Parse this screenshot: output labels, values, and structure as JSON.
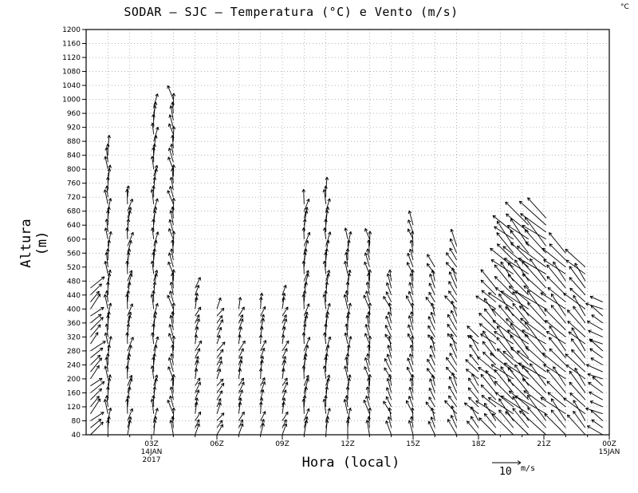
{
  "chart_data": {
    "type": "wind-barb-profile",
    "title": "SODAR – SJC – Temperatura (°C) e Vento (m/s)",
    "unit_corner": "°C",
    "ylabel": "Altura (m)",
    "xlabel": "Hora (local)",
    "scale_value": "10",
    "scale_unit": "m/s",
    "ylim": [
      40,
      1200
    ],
    "y_ticks": [
      40,
      80,
      120,
      160,
      200,
      240,
      280,
      320,
      360,
      400,
      440,
      480,
      520,
      560,
      600,
      640,
      680,
      720,
      760,
      800,
      840,
      880,
      920,
      960,
      1000,
      1040,
      1080,
      1120,
      1160,
      1200
    ],
    "x_range_hours": [
      0,
      24
    ],
    "x_ticks": [
      {
        "hour": 3,
        "label": "03Z",
        "sub": [
          "14JAN",
          "2017"
        ]
      },
      {
        "hour": 6,
        "label": "06Z",
        "sub": []
      },
      {
        "hour": 9,
        "label": "09Z",
        "sub": []
      },
      {
        "hour": 12,
        "label": "12Z",
        "sub": []
      },
      {
        "hour": 15,
        "label": "15Z",
        "sub": []
      },
      {
        "hour": 18,
        "label": "18Z",
        "sub": []
      },
      {
        "hour": 21,
        "label": "21Z",
        "sub": []
      },
      {
        "hour": 24,
        "label": "00Z",
        "sub": [
          "15JAN"
        ]
      }
    ],
    "grid": true,
    "profiles": [
      {
        "hour": 0.2,
        "top": 460,
        "dir": 45,
        "speed": 6
      },
      {
        "hour": 1.0,
        "top": 860,
        "dir": 0,
        "speed": 5
      },
      {
        "hour": 1.9,
        "top": 730,
        "dir": 10,
        "speed": 5
      },
      {
        "hour": 3.1,
        "top": 980,
        "dir": 5,
        "speed": 5
      },
      {
        "hour": 4.0,
        "top": 1010,
        "dir": 350,
        "speed": 5
      },
      {
        "hour": 5.0,
        "top": 460,
        "dir": 20,
        "speed": 4
      },
      {
        "hour": 6.0,
        "top": 410,
        "dir": 30,
        "speed": 4
      },
      {
        "hour": 7.0,
        "top": 410,
        "dir": 20,
        "speed": 4
      },
      {
        "hour": 8.0,
        "top": 420,
        "dir": 15,
        "speed": 4
      },
      {
        "hour": 9.0,
        "top": 440,
        "dir": 20,
        "speed": 4
      },
      {
        "hour": 10.0,
        "top": 710,
        "dir": 10,
        "speed": 5
      },
      {
        "hour": 11.0,
        "top": 740,
        "dir": 5,
        "speed": 5
      },
      {
        "hour": 12.0,
        "top": 600,
        "dir": 0,
        "speed": 5
      },
      {
        "hour": 13.0,
        "top": 600,
        "dir": 350,
        "speed": 5
      },
      {
        "hour": 14.0,
        "top": 480,
        "dir": 340,
        "speed": 5
      },
      {
        "hour": 15.0,
        "top": 650,
        "dir": 345,
        "speed": 5
      },
      {
        "hour": 16.0,
        "top": 530,
        "dir": 335,
        "speed": 5
      },
      {
        "hour": 17.0,
        "top": 590,
        "dir": 330,
        "speed": 6
      },
      {
        "hour": 18.0,
        "top": 330,
        "dir": 320,
        "speed": 6
      },
      {
        "hour": 18.8,
        "top": 460,
        "dir": 315,
        "speed": 8
      },
      {
        "hour": 19.6,
        "top": 620,
        "dir": 315,
        "speed": 10
      },
      {
        "hour": 20.3,
        "top": 640,
        "dir": 315,
        "speed": 11
      },
      {
        "hour": 21.1,
        "top": 660,
        "dir": 312,
        "speed": 12
      },
      {
        "hour": 22.0,
        "top": 560,
        "dir": 315,
        "speed": 10
      },
      {
        "hour": 22.9,
        "top": 530,
        "dir": 318,
        "speed": 9
      },
      {
        "hour": 23.7,
        "top": 420,
        "dir": 300,
        "speed": 6
      }
    ]
  }
}
